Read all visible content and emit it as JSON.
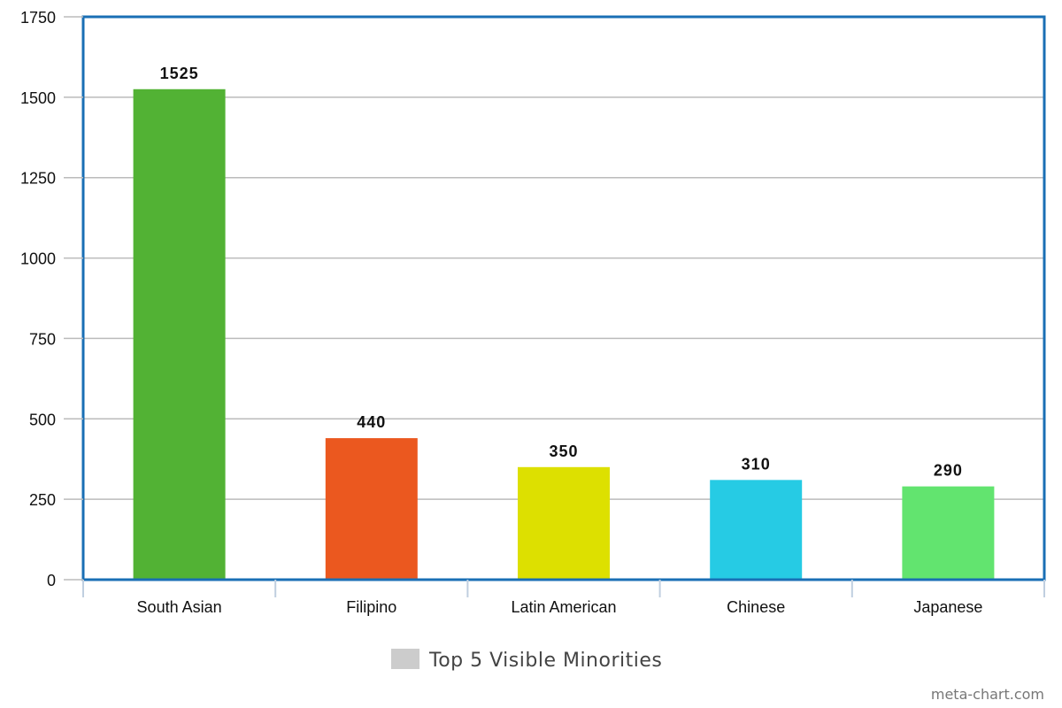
{
  "chart_data": {
    "type": "bar",
    "categories": [
      "South Asian",
      "Filipino",
      "Latin American",
      "Chinese",
      "Japanese"
    ],
    "series": [
      {
        "name": "Top 5 Visible Minorities",
        "values": [
          1525,
          440,
          350,
          310,
          290
        ],
        "colors": [
          "#52b234",
          "#eb581f",
          "#dde000",
          "#26cbe4",
          "#62e46f"
        ]
      }
    ],
    "yticks": [
      "0",
      "250",
      "500",
      "750",
      "1000",
      "1250",
      "1500",
      "1750"
    ],
    "ylim": [
      0,
      1750
    ],
    "grid": true,
    "legend_position": "bottom-center",
    "legend_swatch_color": "#cccccc",
    "frame_color": "#1a6fb5",
    "gridline_color": "#bbbbbb"
  },
  "legend": {
    "label": "Top 5 Visible Minorities"
  },
  "watermark": "meta-chart.com"
}
